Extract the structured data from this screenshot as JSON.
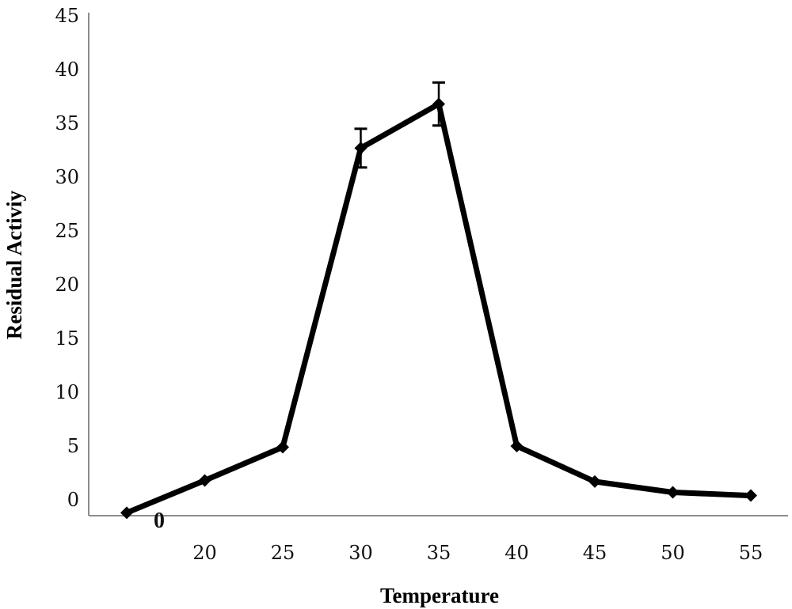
{
  "chart_data": {
    "type": "line",
    "xlabel": "Temperature",
    "ylabel": "Residual Activiy",
    "ylim": [
      0,
      45
    ],
    "yticks": [
      "0",
      "5",
      "10",
      "15",
      "20",
      "25",
      "30",
      "35",
      "40",
      "45"
    ],
    "xticks": [
      "20",
      "25",
      "30",
      "35",
      "40",
      "45",
      "50",
      "55"
    ],
    "stray_label": "0",
    "grid": false,
    "series": [
      {
        "x": [
          15,
          20,
          25,
          30,
          35,
          40,
          45,
          50,
          55
        ],
        "y": [
          -1.2,
          1.8,
          4.9,
          32.7,
          36.8,
          5.0,
          1.7,
          0.7,
          0.4
        ],
        "error": [
          0,
          0,
          0,
          1.8,
          2.0,
          0,
          0,
          0,
          0
        ]
      }
    ]
  },
  "colors": {
    "line": "#000000",
    "axis": "#8c8c8c"
  }
}
